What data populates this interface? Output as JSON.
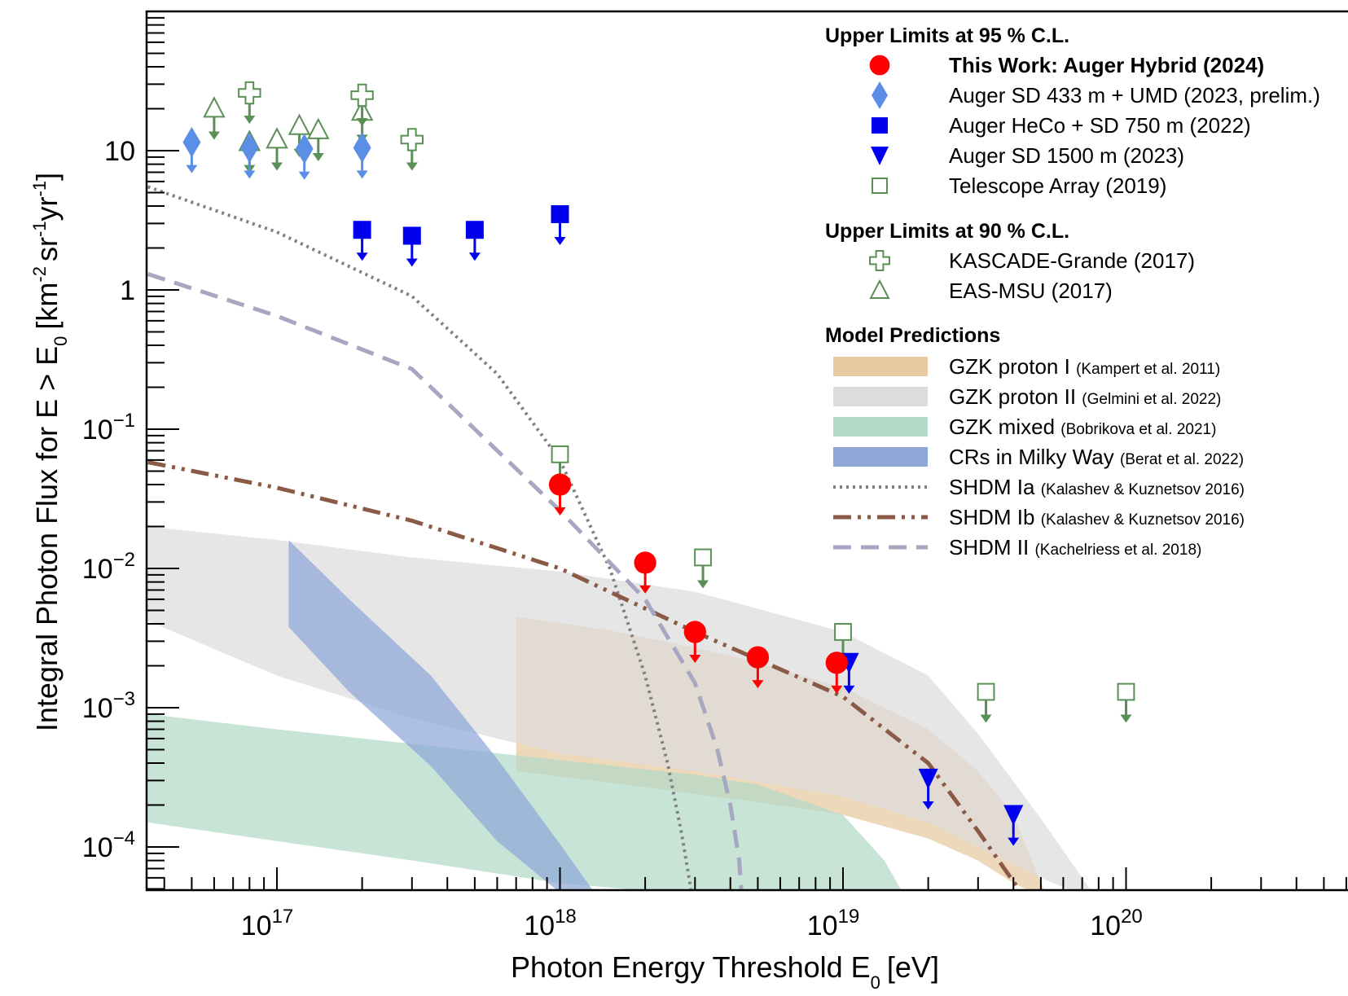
{
  "chart_data": {
    "type": "scatter",
    "xlabel": "Photon Energy Threshold E",
    "xlabel_sub": "0",
    "xlabel_unit": "[eV]",
    "ylabel_pre": "Integral Photon Flux for E > E",
    "ylabel_sub": "0",
    "ylabel_unit": "[km",
    "ylabel_unit_exp1": "-2",
    "ylabel_unit_mid": "sr",
    "ylabel_unit_exp2": "-1",
    "ylabel_unit_mid2": "yr",
    "ylabel_unit_exp3": "-1",
    "ylabel_unit_end": "]",
    "x_scale": "log",
    "y_scale": "log",
    "xlim": [
      3.5e+16,
      6e+20
    ],
    "ylim": [
      5e-05,
      90
    ],
    "x_ticks": [
      {
        "value": 1e+17,
        "base": "10",
        "exp": "17"
      },
      {
        "value": 1e+18,
        "base": "10",
        "exp": "18"
      },
      {
        "value": 1e+19,
        "base": "10",
        "exp": "19"
      },
      {
        "value": 1e+20,
        "base": "10",
        "exp": "20"
      }
    ],
    "y_ticks": [
      {
        "value": 10,
        "base": "10",
        "exp": ""
      },
      {
        "value": 1,
        "base": "1",
        "exp": ""
      },
      {
        "value": 0.1,
        "base": "10",
        "exp": "−1"
      },
      {
        "value": 0.01,
        "base": "10",
        "exp": "−2"
      },
      {
        "value": 0.001,
        "base": "10",
        "exp": "−3"
      },
      {
        "value": 0.0001,
        "base": "10",
        "exp": "−4"
      }
    ],
    "legend_position": "top-right",
    "legend": {
      "group95": "Upper Limits at 95 % C.L.",
      "group90": "Upper Limits at 90 % C.L.",
      "groupModels": "Model Predictions"
    },
    "series": [
      {
        "name": "This Work: Auger Hybrid (2024)",
        "marker": "circle",
        "color": "#ff0000",
        "bold": true,
        "group": "95",
        "x": [
          1e+18,
          2e+18,
          3e+18,
          5e+18,
          9.5e+18
        ],
        "y": [
          0.04,
          0.011,
          0.0035,
          0.0023,
          0.0021
        ]
      },
      {
        "name": "Auger SD 433 m + UMD (2023, prelim.)",
        "marker": "diamond",
        "color": "#5b8fe6",
        "group": "95",
        "x": [
          5e+16,
          8e+16,
          1.25e+17,
          2e+17
        ],
        "y": [
          11.5,
          10.5,
          10.3,
          10.5
        ]
      },
      {
        "name": "Auger HeCo + SD 750 m (2022)",
        "marker": "square",
        "color": "#0000ee",
        "group": "95",
        "x": [
          2e+17,
          3e+17,
          5e+17,
          1e+18
        ],
        "y": [
          2.7,
          2.45,
          2.7,
          3.5
        ]
      },
      {
        "name": "Auger SD 1500 m (2023)",
        "marker": "triangle-down",
        "color": "#0000ee",
        "group": "95",
        "x": [
          1.05e+19,
          2e+19,
          4e+19
        ],
        "y": [
          0.0021,
          0.00031,
          0.00017
        ]
      },
      {
        "name": "Telescope Array (2019)",
        "marker": "open-square",
        "color": "#5a8f55",
        "group": "95",
        "x": [
          1e+18,
          3.2e+18,
          1e+19,
          3.2e+19,
          1e+20
        ],
        "y": [
          0.066,
          0.012,
          0.0035,
          0.0013,
          0.0013
        ]
      },
      {
        "name": "KASCADE-Grande (2017)",
        "marker": "open-cross",
        "color": "#5a8f55",
        "group": "90",
        "x": [
          8e+16,
          2e+17,
          3e+17
        ],
        "y": [
          26,
          25,
          12
        ]
      },
      {
        "name": "EAS-MSU (2017)",
        "marker": "open-triangle",
        "color": "#5a8f55",
        "group": "90",
        "x": [
          6e+16,
          8e+16,
          1e+17,
          1.2e+17,
          1.4e+17,
          2e+17
        ],
        "y": [
          20,
          11.5,
          12,
          15,
          14,
          19
        ]
      }
    ],
    "bands": [
      {
        "name": "GZK proton I",
        "citation": "(Kampert et al. 2011)",
        "color": "#e8c9a0",
        "x": [
          7e+17,
          1.5e+18,
          3e+18,
          5e+18,
          1e+19,
          2e+19,
          3e+19,
          4e+19,
          5.3e+19
        ],
        "lower": [
          0.00035,
          0.00029,
          0.00024,
          0.00021,
          0.00017,
          0.000115,
          8e-05,
          5.5e-05,
          4.2e-05
        ],
        "upper": [
          0.0045,
          0.0036,
          0.0027,
          0.0021,
          0.0014,
          0.0007,
          0.00035,
          0.00017,
          4.2e-05
        ]
      },
      {
        "name": "GZK proton II",
        "citation": "(Gelmini et al. 2022)",
        "color": "#dcdcdc",
        "x": [
          3.5e+16,
          1e+17,
          3e+17,
          1e+18,
          3e+18,
          1e+19,
          2e+19,
          3e+19,
          5e+19,
          7e+19,
          8e+19
        ],
        "lower": [
          0.0042,
          0.0017,
          0.00084,
          0.00047,
          0.00035,
          0.00023,
          0.00015,
          0.0001,
          6e-05,
          4.5e-05,
          4e-05
        ],
        "upper": [
          0.02,
          0.016,
          0.012,
          0.0095,
          0.0068,
          0.0035,
          0.0017,
          0.00065,
          0.00016,
          6e-05,
          4e-05
        ]
      },
      {
        "name": "GZK mixed",
        "citation": "(Bobrikova et al. 2021)",
        "color": "#b3d9c7",
        "x": [
          3.5e+16,
          1e+17,
          3e+17,
          1e+18,
          3e+18,
          5e+18,
          1e+19,
          1.4e+19,
          1.7e+19
        ],
        "lower": [
          0.00015,
          0.00011,
          8e-05,
          5.5e-05,
          4.5e-05,
          4e-05,
          4e-05,
          4e-05,
          4e-05
        ],
        "upper": [
          0.0009,
          0.0007,
          0.00055,
          0.00042,
          0.00033,
          0.00028,
          0.00017,
          8e-05,
          4e-05
        ]
      },
      {
        "name": "CRs in Milky Way",
        "citation": "(Berat et al. 2022)",
        "color": "#8ea6d8",
        "x": [
          1.1e+17,
          1.8e+17,
          3.5e+17,
          6e+17,
          1e+18,
          1.4e+18
        ],
        "lower": [
          0.0038,
          0.0013,
          0.00038,
          0.00011,
          4.7e-05,
          4e-05
        ],
        "upper": [
          0.016,
          0.006,
          0.0017,
          0.00043,
          0.000105,
          4e-05
        ]
      }
    ],
    "curves": [
      {
        "name": "SHDM Ia",
        "citation": "(Kalashev & Kuznetsov 2016)",
        "style": "dotted",
        "color": "#808080",
        "x": [
          3.5e+16,
          1e+17,
          3e+17,
          6e+17,
          1e+18,
          1.5e+18,
          2e+18,
          2.4e+18,
          2.7e+18,
          2.9e+18
        ],
        "y": [
          5.5,
          2.6,
          0.9,
          0.25,
          0.06,
          0.01,
          0.0017,
          0.0004,
          0.00012,
          5e-05
        ]
      },
      {
        "name": "SHDM Ib",
        "citation": "(Kalashev & Kuznetsov 2016)",
        "style": "dashdotdot",
        "color": "#8b5a46",
        "x": [
          3.5e+16,
          1e+17,
          3e+17,
          1e+18,
          3e+18,
          1e+19,
          2e+19,
          3e+19,
          4.5e+19
        ],
        "y": [
          0.058,
          0.038,
          0.022,
          0.01,
          0.0035,
          0.0012,
          0.0004,
          0.00013,
          4e-05
        ]
      },
      {
        "name": "SHDM II",
        "citation": "(Kachelriess et al. 2018)",
        "style": "dashed",
        "color": "#a7a7c2",
        "x": [
          3.5e+16,
          1e+17,
          3e+17,
          1e+18,
          2e+18,
          3e+18,
          3.6e+18,
          4e+18,
          4.3e+18,
          4.4e+18
        ],
        "y": [
          1.3,
          0.65,
          0.27,
          0.026,
          0.006,
          0.0015,
          0.0005,
          0.0002,
          8e-05,
          4e-05
        ]
      }
    ]
  }
}
